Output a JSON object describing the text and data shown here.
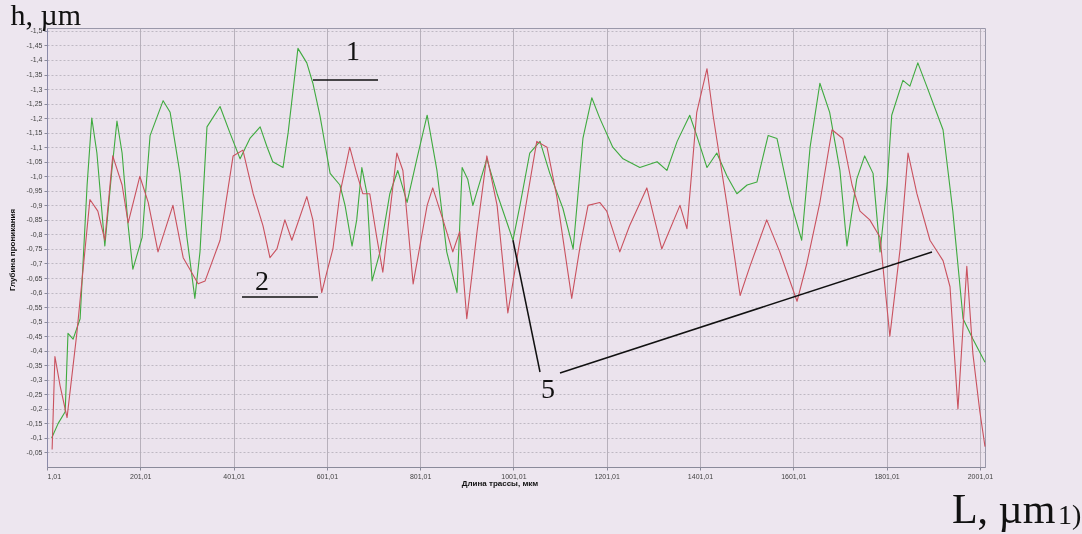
{
  "chart_data": {
    "type": "line",
    "xlabel": "L, µm",
    "ylabel": "h, µm",
    "xlim": [
      1.01,
      2012
    ],
    "ylim": [
      0,
      -1.51
    ],
    "xticks": [
      {
        "value": 1.01,
        "label": "1,01"
      },
      {
        "value": 201.01,
        "label": "201,01"
      },
      {
        "value": 401.01,
        "label": "401,01"
      },
      {
        "value": 601.01,
        "label": "601,01"
      },
      {
        "value": 801.01,
        "label": "801,01"
      },
      {
        "value": 1001.01,
        "label": "1001,01"
      },
      {
        "value": 1201.01,
        "label": "1201,01"
      },
      {
        "value": 1401.01,
        "label": "1401,01"
      },
      {
        "value": 1601.01,
        "label": "1601,01"
      },
      {
        "value": 1801.01,
        "label": "1801,01"
      },
      {
        "value": 2001.01,
        "label": "2001,01"
      }
    ],
    "yticks": [
      {
        "value": -0.05,
        "label": "-0,05"
      },
      {
        "value": -0.1,
        "label": "-0,1"
      },
      {
        "value": -0.15,
        "label": "-0,15"
      },
      {
        "value": -0.2,
        "label": "-0,2"
      },
      {
        "value": -0.25,
        "label": "-0,25"
      },
      {
        "value": -0.3,
        "label": "-0,3"
      },
      {
        "value": -0.35,
        "label": "-0,35"
      },
      {
        "value": -0.4,
        "label": "-0,4"
      },
      {
        "value": -0.45,
        "label": "-0,45"
      },
      {
        "value": -0.5,
        "label": "-0,5"
      },
      {
        "value": -0.55,
        "label": "-0,55"
      },
      {
        "value": -0.6,
        "label": "-0,6"
      },
      {
        "value": -0.65,
        "label": "-0,65"
      },
      {
        "value": -0.7,
        "label": "-0,7"
      },
      {
        "value": -0.75,
        "label": "-0,75"
      },
      {
        "value": -0.8,
        "label": "-0,8"
      },
      {
        "value": -0.85,
        "label": "-0,85"
      },
      {
        "value": -0.9,
        "label": "-0,9"
      },
      {
        "value": -0.95,
        "label": "-0,95"
      },
      {
        "value": -1,
        "label": "-1,0"
      },
      {
        "value": -1.05,
        "label": "-1,05"
      },
      {
        "value": -1.1,
        "label": "-1,1"
      },
      {
        "value": -1.15,
        "label": "-1,15"
      },
      {
        "value": -1.2,
        "label": "-1,2"
      },
      {
        "value": -1.25,
        "label": "-1,25"
      },
      {
        "value": -1.3,
        "label": "-1,3"
      },
      {
        "value": -1.35,
        "label": "-1,35"
      },
      {
        "value": -1.4,
        "label": "-1,4"
      },
      {
        "value": -1.45,
        "label": "-1,45"
      },
      {
        "value": -1.5,
        "label": "-1,5"
      }
    ],
    "grid": true,
    "series": [
      {
        "name": "1",
        "color": "#3faa3f",
        "x": [
          11,
          25,
          40,
          46,
          57,
          72,
          87,
          97,
          108,
          125,
          140,
          151,
          162,
          175,
          185,
          205,
          222,
          250,
          265,
          286,
          301,
          318,
          329,
          344,
          372,
          393,
          415,
          436,
          458,
          473,
          485,
          507,
          518,
          539,
          558,
          571,
          586,
          608,
          629,
          640,
          655,
          665,
          676,
          687,
          698,
          715,
          736,
          753,
          773,
          794,
          816,
          837,
          858,
          880,
          891,
          903,
          914,
          944,
          966,
          1000,
          1015,
          1036,
          1058,
          1079,
          1107,
          1129,
          1150,
          1169,
          1186,
          1214,
          1236,
          1272,
          1309,
          1330,
          1352,
          1379,
          1394,
          1416,
          1437,
          1459,
          1480,
          1502,
          1523,
          1547,
          1566,
          1594,
          1619,
          1637,
          1658,
          1679,
          1701,
          1716,
          1737,
          1754,
          1772,
          1787,
          1802,
          1812,
          1836,
          1851,
          1868,
          1887,
          1922,
          1943,
          1965,
          1986,
          2012
        ],
        "values": [
          -0.1,
          -0.15,
          -0.19,
          -0.46,
          -0.44,
          -0.51,
          -0.97,
          -1.2,
          -1.08,
          -0.76,
          -1.02,
          -1.19,
          -1.08,
          -0.83,
          -0.68,
          -0.79,
          -1.14,
          -1.26,
          -1.22,
          -1.01,
          -0.79,
          -0.58,
          -0.74,
          -1.17,
          -1.24,
          -1.15,
          -1.06,
          -1.13,
          -1.17,
          -1.1,
          -1.05,
          -1.03,
          -1.15,
          -1.44,
          -1.39,
          -1.32,
          -1.21,
          -1.01,
          -0.97,
          -0.9,
          -0.76,
          -0.85,
          -1.03,
          -0.94,
          -0.64,
          -0.74,
          -0.94,
          -1.02,
          -0.91,
          -1.06,
          -1.21,
          -1.02,
          -0.74,
          -0.6,
          -1.03,
          -0.99,
          -0.9,
          -1.06,
          -0.94,
          -0.78,
          -0.9,
          -1.08,
          -1.12,
          -1.01,
          -0.89,
          -0.75,
          -1.13,
          -1.27,
          -1.2,
          -1.1,
          -1.06,
          -1.03,
          -1.05,
          -1.02,
          -1.12,
          -1.21,
          -1.14,
          -1.03,
          -1.08,
          -1.0,
          -0.94,
          -0.97,
          -0.98,
          -1.14,
          -1.13,
          -0.92,
          -0.78,
          -1.1,
          -1.32,
          -1.22,
          -1.02,
          -0.76,
          -0.99,
          -1.07,
          -1.01,
          -0.74,
          -0.97,
          -1.21,
          -1.33,
          -1.31,
          -1.39,
          -1.31,
          -1.16,
          -0.88,
          -0.51,
          -0.44,
          -0.36
        ]
      },
      {
        "name": "2",
        "color": "#c9525f",
        "x": [
          12,
          18,
          29,
          44,
          65,
          93,
          110,
          125,
          142,
          162,
          175,
          200,
          218,
          239,
          271,
          293,
          325,
          340,
          372,
          400,
          421,
          443,
          464,
          479,
          494,
          511,
          526,
          558,
          571,
          590,
          601,
          614,
          629,
          650,
          665,
          678,
          693,
          708,
          721,
          751,
          764,
          786,
          816,
          828,
          850,
          871,
          886,
          901,
          923,
          944,
          966,
          989,
          1015,
          1051,
          1073,
          1094,
          1126,
          1144,
          1161,
          1186,
          1201,
          1229,
          1250,
          1287,
          1319,
          1358,
          1373,
          1394,
          1416,
          1429,
          1459,
          1487,
          1508,
          1544,
          1572,
          1609,
          1630,
          1658,
          1684,
          1707,
          1727,
          1744,
          1765,
          1787,
          1808,
          1830,
          1847,
          1866,
          1894,
          1922,
          1937,
          1954,
          1973,
          1986,
          2001,
          2012
        ],
        "values": [
          -0.06,
          -0.38,
          -0.28,
          -0.17,
          -0.46,
          -0.92,
          -0.88,
          -0.78,
          -1.07,
          -0.97,
          -0.84,
          -1.0,
          -0.91,
          -0.74,
          -0.9,
          -0.72,
          -0.63,
          -0.64,
          -0.78,
          -1.07,
          -1.09,
          -0.94,
          -0.83,
          -0.72,
          -0.75,
          -0.85,
          -0.78,
          -0.93,
          -0.85,
          -0.6,
          -0.67,
          -0.75,
          -0.94,
          -1.1,
          -1.01,
          -0.94,
          -0.94,
          -0.79,
          -0.67,
          -1.08,
          -1.02,
          -0.63,
          -0.9,
          -0.96,
          -0.85,
          -0.74,
          -0.81,
          -0.51,
          -0.81,
          -1.07,
          -0.9,
          -0.53,
          -0.78,
          -1.12,
          -1.1,
          -0.93,
          -0.58,
          -0.76,
          -0.9,
          -0.91,
          -0.88,
          -0.74,
          -0.83,
          -0.96,
          -0.75,
          -0.9,
          -0.82,
          -1.22,
          -1.37,
          -1.21,
          -0.9,
          -0.59,
          -0.69,
          -0.85,
          -0.74,
          -0.57,
          -0.7,
          -0.91,
          -1.16,
          -1.13,
          -0.97,
          -0.88,
          -0.85,
          -0.79,
          -0.45,
          -0.75,
          -1.08,
          -0.94,
          -0.78,
          -0.71,
          -0.62,
          -0.2,
          -0.69,
          -0.39,
          -0.19,
          -0.07
        ]
      }
    ],
    "annotations": [
      {
        "text": "5",
        "x": 1000,
        "y": -0.78
      },
      "Длина трассы, мкм",
      "Глубина проникания",
      "1)"
    ]
  }
}
